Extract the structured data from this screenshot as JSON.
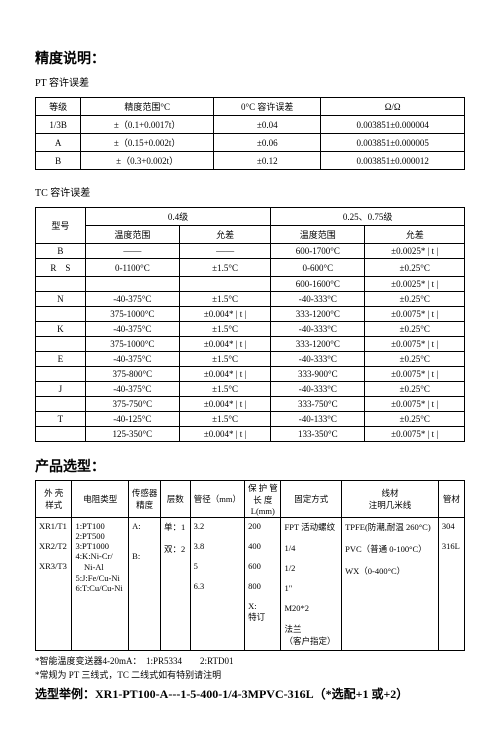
{
  "title1": "精度说明：",
  "pt_label": "PT 容许误差",
  "tc_label": "TC 容许误差",
  "table1": {
    "headers": [
      "等级",
      "精度范围°C",
      "0°C 容许误差",
      "Ω/Ω"
    ],
    "rows": [
      [
        "1/3B",
        "±（0.1+0.0017t）",
        "±0.04",
        "0.003851±0.000004"
      ],
      [
        "A",
        "±（0.15+0.002t）",
        "±0.06",
        "0.003851±0.000005"
      ],
      [
        "B",
        "±（0.3+0.002t）",
        "±0.12",
        "0.003851±0.000012"
      ]
    ]
  },
  "table2": {
    "h_model": "型号",
    "h_cls04": "0.4级",
    "h_cls025": "0.25、0.75级",
    "h_range": "温度范围",
    "h_tol": "允差",
    "rows": [
      [
        "B",
        "——",
        "——",
        "600-1700°C",
        "±0.0025* | t |"
      ],
      [
        "R　S",
        "0-1100°C",
        "±1.5°C",
        "0-600°C",
        "±0.25°C"
      ],
      [
        "",
        "",
        "",
        "600-1600°C",
        "±0.0025* | t |"
      ],
      [
        "N",
        "-40-375°C",
        "±1.5°C",
        "-40-333°C",
        "±0.25°C"
      ],
      [
        "",
        "375-1000°C",
        "±0.004* | t |",
        "333-1200°C",
        "±0.0075* | t |"
      ],
      [
        "K",
        "-40-375°C",
        "±1.5°C",
        "-40-333°C",
        "±0.25°C"
      ],
      [
        "",
        "375-1000°C",
        "±0.004* | t |",
        "333-1200°C",
        "±0.0075* | t |"
      ],
      [
        "E",
        "-40-375°C",
        "±1.5°C",
        "-40-333°C",
        "±0.25°C"
      ],
      [
        "",
        "375-800°C",
        "±0.004* | t |",
        "333-900°C",
        "±0.0075* | t |"
      ],
      [
        "J",
        "-40-375°C",
        "±1.5°C",
        "-40-333°C",
        "±0.25°C"
      ],
      [
        "",
        "375-750°C",
        "±0.004* | t |",
        "333-750°C",
        "±0.0075* | t |"
      ],
      [
        "T",
        "-40-125°C",
        "±1.5°C",
        "-40-133°C",
        "±0.25°C"
      ],
      [
        "",
        "125-350°C",
        "±0.004* | t |",
        "133-350°C",
        "±0.0075* | t |"
      ]
    ]
  },
  "title2": "产品选型：",
  "table3": {
    "headers": [
      "外 壳\n样式",
      "电阻类型",
      "传感器\n精度",
      "层数",
      "管径（mm）",
      "保 护 管\n长 度\nL(mm)",
      "固定方式",
      "线材\n注明几米线",
      "管材"
    ],
    "col1": "XR1/T1\n\nXR2/T2\n\nXR3/T3",
    "col2": "1:PT100\n2:PT500\n3:PT1000\n4:K:Ni-Cr/\n　Ni-Al\n5:J:Fe/Cu-Ni\n6:T:Cu/Cu-Ni",
    "col3": "A:\n\n\nB:",
    "col4": "单：1\n\n双：2",
    "col5": "3.2\n\n3.8\n\n5\n\n6.3",
    "col6": "200\n\n400\n\n600\n\n800\n\nX:\n特订",
    "col7": "FPT 活动螺纹\n\n1/4\n\n1/2\n\n1\"\n\nM20*2\n\n法兰\n（客户指定）",
    "col8": "TPFE(防潮,耐温 260°C)\n\nPVC（普通 0-100°C）\n\nWX（0-400°C）",
    "col9": "304\n\n316L"
  },
  "note1": "*智能温度变送器4-20mA：　1:PR5334　　2:RTD01",
  "note2": "*常规为 PT 三线式，TC 二线式如有特别请注明",
  "example": "选型举例：XR1-PT100-A---1-5-400-1/4-3MPVC-316L（*选配+1 或+2）"
}
